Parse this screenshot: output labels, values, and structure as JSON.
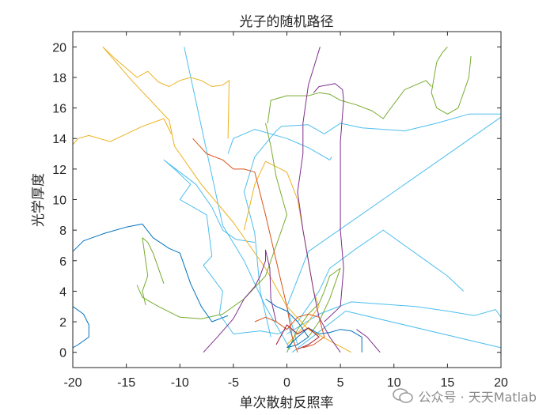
{
  "chart_data": {
    "type": "line",
    "title": "光子的随机路径",
    "xlabel": "单次散射反照率",
    "ylabel": "光学厚度",
    "xlim": [
      -20,
      20
    ],
    "ylim": [
      -1,
      21
    ],
    "xticks": [
      -20,
      -15,
      -10,
      -5,
      0,
      5,
      10,
      15,
      20
    ],
    "yticks": [
      0,
      2,
      4,
      6,
      8,
      10,
      12,
      14,
      16,
      18,
      20
    ],
    "grid": false,
    "colors": [
      "#0072bd",
      "#d95319",
      "#edb120",
      "#7e2f8e",
      "#77ac30",
      "#4dbeee",
      "#a2142f"
    ],
    "series": [
      {
        "color": "#4dbeee",
        "points": [
          [
            0,
            0
          ],
          [
            0.6,
            0.8
          ],
          [
            0.2,
            1.6
          ],
          [
            -0.8,
            1.2
          ],
          [
            -2.5,
            1.4
          ],
          [
            -5,
            1.2
          ],
          [
            -6.3,
            2.5
          ],
          [
            -6,
            4
          ],
          [
            -7.8,
            5.7
          ],
          [
            -7,
            6.3
          ],
          [
            -7.5,
            9
          ],
          [
            -10,
            10
          ],
          [
            -9,
            11
          ],
          [
            -10.5,
            12
          ],
          [
            -11.5,
            12.6
          ],
          [
            -8.5,
            11
          ],
          [
            -7,
            9.5
          ],
          [
            -6,
            8
          ],
          [
            -4.8,
            7.4
          ],
          [
            -3,
            7.2
          ]
        ]
      },
      {
        "color": "#4dbeee",
        "points": [
          [
            0.5,
            0
          ],
          [
            2,
            0.8
          ],
          [
            3.3,
            1.5
          ],
          [
            5.5,
            2.7
          ],
          [
            20,
            0.3
          ]
        ]
      },
      {
        "color": "#4dbeee",
        "points": [
          [
            1,
            0.5
          ],
          [
            0,
            3
          ],
          [
            2,
            6.6
          ],
          [
            20,
            15.4
          ]
        ]
      },
      {
        "color": "#4dbeee",
        "points": [
          [
            0.3,
            0.2
          ],
          [
            -2,
            3
          ],
          [
            -4,
            6
          ],
          [
            -6,
            8.3
          ],
          [
            -9.6,
            20
          ]
        ]
      },
      {
        "color": "#4dbeee",
        "points": [
          [
            0,
            1.2
          ],
          [
            3,
            2.5
          ],
          [
            6,
            3.3
          ],
          [
            12,
            3
          ],
          [
            15,
            2.7
          ],
          [
            17.5,
            2.4
          ],
          [
            19.5,
            2.8
          ],
          [
            20,
            2.3
          ]
        ]
      },
      {
        "color": "#4dbeee",
        "points": [
          [
            1,
            2
          ],
          [
            3,
            4
          ],
          [
            4,
            5.5
          ],
          [
            6.5,
            6.8
          ],
          [
            9,
            8
          ],
          [
            11,
            7
          ],
          [
            13,
            6
          ],
          [
            15,
            5
          ],
          [
            16.5,
            4
          ]
        ]
      },
      {
        "color": "#4dbeee",
        "points": [
          [
            -1.5,
            1
          ],
          [
            -2.5,
            4
          ],
          [
            -3,
            7.8
          ],
          [
            -4,
            10.5
          ],
          [
            -3,
            12.8
          ],
          [
            -1,
            14.5
          ],
          [
            -0.5,
            14.8
          ],
          [
            2,
            14.9
          ],
          [
            3.5,
            14.3
          ],
          [
            5,
            15
          ],
          [
            7,
            14.7
          ],
          [
            9,
            14.6
          ],
          [
            11,
            14.5
          ],
          [
            14,
            15
          ],
          [
            17,
            15.6
          ],
          [
            20,
            15.6
          ]
        ]
      },
      {
        "color": "#4dbeee",
        "points": [
          [
            -5.5,
            13
          ],
          [
            -5,
            14
          ],
          [
            -4,
            14.3
          ],
          [
            -3,
            14.6
          ],
          [
            0,
            14
          ],
          [
            2,
            13.4
          ],
          [
            4,
            12.6
          ],
          [
            4.2,
            12.8
          ]
        ]
      },
      {
        "color": "#edb120",
        "points": [
          [
            -17.2,
            20
          ],
          [
            -14.5,
            17.8
          ],
          [
            -11,
            15.2
          ],
          [
            -10.5,
            13.5
          ],
          [
            -8,
            11
          ],
          [
            -5,
            8.5
          ],
          [
            -2,
            5.5
          ],
          [
            0,
            3
          ],
          [
            2,
            1.5
          ],
          [
            6,
            0
          ]
        ]
      },
      {
        "color": "#edb120",
        "points": [
          [
            -20,
            13.6
          ],
          [
            -19.5,
            14
          ],
          [
            -18.5,
            14.2
          ],
          [
            -16.5,
            13.8
          ],
          [
            -15,
            14.3
          ],
          [
            -13.5,
            14.8
          ],
          [
            -11.5,
            15.3
          ],
          [
            -10.8,
            14.3
          ]
        ]
      },
      {
        "color": "#edb120",
        "points": [
          [
            -17.2,
            20
          ],
          [
            -16,
            19.2
          ],
          [
            -14,
            18
          ],
          [
            -13,
            18.4
          ],
          [
            -12,
            17.7
          ],
          [
            -11,
            17.4
          ],
          [
            -10,
            17.8
          ],
          [
            -9,
            18
          ],
          [
            -8,
            17.8
          ],
          [
            -7,
            17.4
          ],
          [
            -6,
            17.5
          ],
          [
            -5.4,
            17.8
          ],
          [
            -5.5,
            14
          ]
        ]
      },
      {
        "color": "#edb120",
        "points": [
          [
            -4,
            8
          ],
          [
            -3,
            11
          ],
          [
            -2,
            12.5
          ],
          [
            0,
            11.8
          ],
          [
            1,
            10
          ],
          [
            1.5,
            8
          ],
          [
            2,
            6
          ],
          [
            2.5,
            4
          ],
          [
            3,
            3
          ],
          [
            2,
            2
          ],
          [
            0,
            0.5
          ]
        ]
      },
      {
        "color": "#77ac30",
        "points": [
          [
            15,
            20
          ],
          [
            14.5,
            19.6
          ],
          [
            14,
            19
          ],
          [
            13.5,
            17
          ],
          [
            14,
            16
          ],
          [
            15,
            15.6
          ],
          [
            16,
            16
          ],
          [
            16.5,
            17
          ],
          [
            17,
            18
          ],
          [
            17.2,
            19.4
          ]
        ]
      },
      {
        "color": "#77ac30",
        "points": [
          [
            13.5,
            17.4
          ],
          [
            13,
            17.8
          ],
          [
            11,
            17.2
          ],
          [
            9.5,
            15.8
          ],
          [
            9,
            15.3
          ],
          [
            8,
            15.8
          ],
          [
            6.5,
            16.2
          ],
          [
            5,
            16.5
          ],
          [
            4,
            16.9
          ],
          [
            3,
            17
          ],
          [
            2,
            16.8
          ],
          [
            0,
            16.8
          ],
          [
            -1.5,
            16.5
          ],
          [
            -1.8,
            15
          ]
        ]
      },
      {
        "color": "#77ac30",
        "points": [
          [
            -2,
            15
          ],
          [
            -1.5,
            13.5
          ],
          [
            -1,
            11.5
          ],
          [
            0,
            9
          ],
          [
            -1,
            7
          ],
          [
            -2,
            5
          ],
          [
            -4,
            3.5
          ],
          [
            -6,
            2.5
          ],
          [
            -8,
            2.2
          ],
          [
            -10,
            2.3
          ],
          [
            -12,
            3
          ],
          [
            -13.5,
            3.6
          ],
          [
            -14,
            4.4
          ]
        ]
      },
      {
        "color": "#77ac30",
        "points": [
          [
            -13.2,
            3.1
          ],
          [
            -13.5,
            4
          ],
          [
            -13,
            5
          ],
          [
            -13.2,
            6
          ],
          [
            -13.5,
            7.5
          ],
          [
            -13,
            7.2
          ],
          [
            -12.5,
            6.5
          ],
          [
            -12,
            5.5
          ],
          [
            -11.5,
            4.5
          ]
        ]
      },
      {
        "color": "#77ac30",
        "points": [
          [
            0,
            0
          ],
          [
            1,
            1.5
          ],
          [
            2,
            2.5
          ],
          [
            3,
            3.2
          ],
          [
            3.5,
            4
          ],
          [
            4,
            5
          ],
          [
            5,
            5.5
          ],
          [
            4,
            3.5
          ],
          [
            3,
            2
          ],
          [
            2,
            1
          ]
        ]
      },
      {
        "color": "#0072bd",
        "points": [
          [
            -20,
            6.6
          ],
          [
            -19,
            7.3
          ],
          [
            -17,
            7.8
          ],
          [
            -15,
            8.2
          ],
          [
            -13.5,
            8.4
          ],
          [
            -12.5,
            7.5
          ],
          [
            -11,
            6.8
          ],
          [
            -10,
            6.5
          ],
          [
            -9,
            4.5
          ],
          [
            -8,
            3
          ],
          [
            -7,
            2
          ],
          [
            -5.5,
            2.4
          ]
        ]
      },
      {
        "color": "#0072bd",
        "points": [
          [
            -20,
            3
          ],
          [
            -19,
            2.5
          ],
          [
            -18.5,
            1.8
          ],
          [
            -18.5,
            1
          ],
          [
            -19.5,
            0.5
          ],
          [
            -20,
            0.3
          ]
        ]
      },
      {
        "color": "#0072bd",
        "points": [
          [
            0,
            0.3
          ],
          [
            1,
            1
          ],
          [
            2,
            1.6
          ],
          [
            3,
            1.2
          ],
          [
            4,
            1.3
          ],
          [
            5,
            1.5
          ],
          [
            6,
            1.4
          ],
          [
            7,
            1
          ],
          [
            7,
            0
          ]
        ]
      },
      {
        "color": "#0072bd",
        "points": [
          [
            -2,
            3.5
          ],
          [
            -1,
            3
          ],
          [
            0,
            2.7
          ],
          [
            1,
            2
          ],
          [
            2,
            1
          ],
          [
            1,
            0.5
          ],
          [
            0,
            0.3
          ]
        ]
      },
      {
        "color": "#7e2f8e",
        "points": [
          [
            3.1,
            20
          ],
          [
            2,
            17.5
          ],
          [
            1.5,
            15
          ],
          [
            1.5,
            13
          ],
          [
            1,
            10.5
          ],
          [
            1.5,
            8
          ],
          [
            2,
            6
          ],
          [
            2.5,
            4
          ],
          [
            3,
            2.3
          ],
          [
            4,
            1
          ],
          [
            5,
            0
          ]
        ]
      },
      {
        "color": "#7e2f8e",
        "points": [
          [
            -7.8,
            0
          ],
          [
            -6.5,
            1
          ],
          [
            -5,
            2.2
          ],
          [
            -4,
            3.5
          ],
          [
            -3,
            4.3
          ],
          [
            -2.5,
            5
          ],
          [
            -2,
            6
          ],
          [
            -2,
            6.7
          ],
          [
            -1.6,
            5.5
          ],
          [
            -1.5,
            3.5
          ],
          [
            -1,
            2
          ]
        ]
      },
      {
        "color": "#7e2f8e",
        "points": [
          [
            3.5,
            2
          ],
          [
            5,
            3
          ],
          [
            5.3,
            5.5
          ],
          [
            5,
            8
          ],
          [
            5,
            11
          ],
          [
            5,
            13.8
          ],
          [
            5.3,
            16.5
          ],
          [
            5.2,
            17.2
          ],
          [
            4.5,
            17.6
          ],
          [
            3,
            17.4
          ],
          [
            2.5,
            17
          ]
        ]
      },
      {
        "color": "#7e2f8e",
        "points": [
          [
            6.5,
            1.5
          ],
          [
            7.5,
            1
          ],
          [
            8.7,
            0
          ]
        ]
      },
      {
        "color": "#d95319",
        "points": [
          [
            -8.8,
            14
          ],
          [
            -7.5,
            13
          ],
          [
            -6,
            12.6
          ],
          [
            -5,
            12
          ],
          [
            -4,
            12
          ],
          [
            -3,
            11.8
          ],
          [
            -2,
            9
          ],
          [
            -1,
            6
          ],
          [
            0,
            3
          ],
          [
            0.5,
            1
          ],
          [
            1,
            0
          ]
        ]
      },
      {
        "color": "#d95319",
        "points": [
          [
            -3,
            2
          ],
          [
            -2,
            2.3
          ],
          [
            -1,
            2
          ],
          [
            0,
            1.5
          ],
          [
            1,
            2.3
          ],
          [
            2,
            2.5
          ],
          [
            3,
            2.3
          ],
          [
            3.5,
            1
          ],
          [
            2.5,
            0.5
          ],
          [
            1.5,
            0.3
          ]
        ]
      },
      {
        "color": "#a2142f",
        "points": [
          [
            -1,
            0.5
          ],
          [
            0,
            1.8
          ],
          [
            1,
            1.2
          ],
          [
            2,
            1.6
          ],
          [
            3,
            1
          ],
          [
            2,
            0.5
          ],
          [
            1,
            0.2
          ]
        ]
      }
    ]
  },
  "watermark": {
    "text": "公众号 · 天天Matlab"
  }
}
